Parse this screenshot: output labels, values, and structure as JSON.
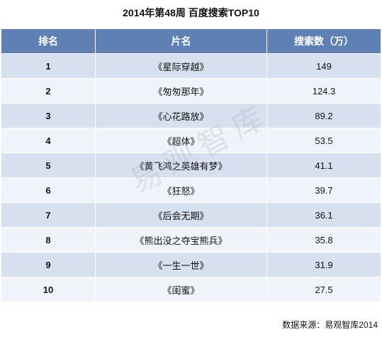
{
  "title": "2014年第48周 百度搜索TOP10",
  "watermark": "易观智库",
  "source": "数据来源：易观智库2014",
  "columns": {
    "rank": "排名",
    "name": "片名",
    "value": "搜索数（万）"
  },
  "colors": {
    "header": "#5f80b4",
    "row_odd": "#d7e0ef",
    "row_even": "#f0f4fa"
  },
  "chart_data": {
    "type": "table",
    "title": "2014年第48周 百度搜索TOP10",
    "columns": [
      "排名",
      "片名",
      "搜索数（万）"
    ],
    "rows": [
      {
        "rank": "1",
        "name": "《星际穿越》",
        "value": "149"
      },
      {
        "rank": "2",
        "name": "《匆匆那年》",
        "value": "124.3"
      },
      {
        "rank": "3",
        "name": "《心花路放》",
        "value": "89.2"
      },
      {
        "rank": "4",
        "name": "《超体》",
        "value": "53.5"
      },
      {
        "rank": "5",
        "name": "《黄飞鸿之英雄有梦》",
        "value": "41.1"
      },
      {
        "rank": "6",
        "name": "《狂怒》",
        "value": "39.7"
      },
      {
        "rank": "7",
        "name": "《后会无期》",
        "value": "36.1"
      },
      {
        "rank": "8",
        "name": "《熊出没之夺宝熊兵》",
        "value": "35.8"
      },
      {
        "rank": "9",
        "name": "《一生一世》",
        "value": "31.9"
      },
      {
        "rank": "10",
        "name": "《闺蜜》",
        "value": "27.5"
      }
    ]
  }
}
